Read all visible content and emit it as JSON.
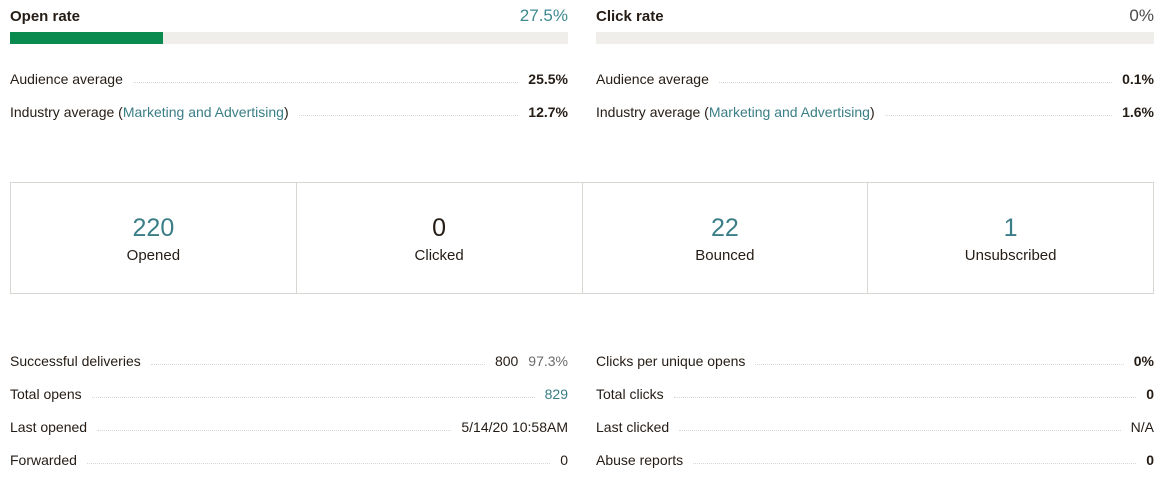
{
  "open_rate": {
    "title": "Open rate",
    "value": "27.5%",
    "fill_fraction": 0.275,
    "bar_color": "#0a8a4f",
    "audience_label": "Audience average",
    "audience_value": "25.5%",
    "industry_label_prefix": "Industry average (",
    "industry_link": "Marketing and Advertising",
    "industry_label_suffix": ")",
    "industry_value": "12.7%"
  },
  "click_rate": {
    "title": "Click rate",
    "value": "0%",
    "fill_fraction": 0,
    "audience_label": "Audience average",
    "audience_value": "0.1%",
    "industry_label_prefix": "Industry average (",
    "industry_link": "Marketing and Advertising",
    "industry_label_suffix": ")",
    "industry_value": "1.6%"
  },
  "stats": [
    {
      "number": "220",
      "label": "Opened"
    },
    {
      "number": "0",
      "label": "Clicked"
    },
    {
      "number": "22",
      "label": "Bounced"
    },
    {
      "number": "1",
      "label": "Unsubscribed"
    }
  ],
  "details_left": [
    {
      "label": "Successful deliveries",
      "value": "800",
      "extra": "97.3%"
    },
    {
      "label": "Total opens",
      "value": "829"
    },
    {
      "label": "Last opened",
      "value": "5/14/20 10:58AM"
    },
    {
      "label": "Forwarded",
      "value": "0"
    }
  ],
  "details_right": [
    {
      "label": "Clicks per unique opens",
      "value": "0%"
    },
    {
      "label": "Total clicks",
      "value": "0"
    },
    {
      "label": "Last clicked",
      "value": "N/A"
    },
    {
      "label": "Abuse reports",
      "value": "0"
    }
  ],
  "colors": {
    "teal_link": "#3a7e87",
    "progress_green": "#0a8a4f",
    "track": "#efeeea",
    "border": "#d9d7d1"
  }
}
